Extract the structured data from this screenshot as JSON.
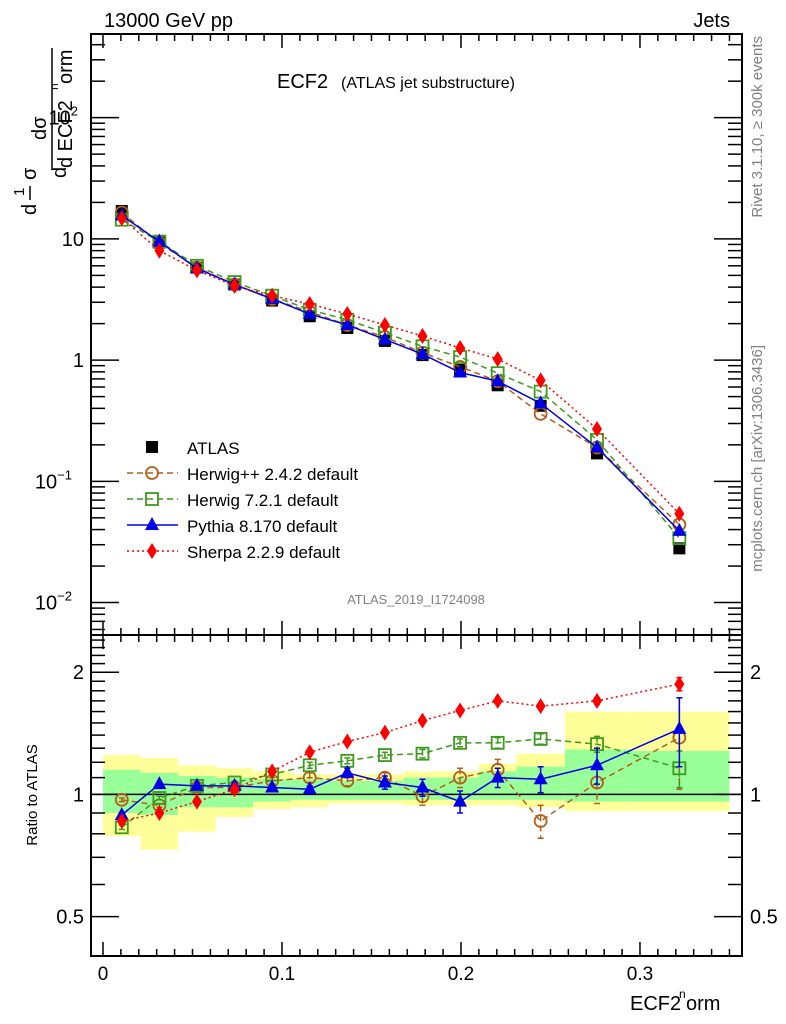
{
  "header": {
    "left": "13000 GeV pp",
    "right": "Jets"
  },
  "side_labels": {
    "rivet": "Rivet 3.1.10, ≥ 300k events",
    "mcplots": "mcplots.cern.ch [arXiv:1306.3436]"
  },
  "chart_data": [
    {
      "type": "line",
      "panel": "main",
      "title": "ECF2",
      "subtitle": "(ATLAS jet substructure)",
      "watermark": "ATLAS_2019_I1724098",
      "xlabel": "ECF2^norm",
      "ylabel": "1/σ dσ/d ECF2^norm",
      "yscale": "log",
      "xlim": [
        -0.0067,
        0.357
      ],
      "ylim": [
        0.0054,
        490
      ],
      "ytick_labels": [
        "10^{-2}",
        "10^{-1}",
        "1",
        "10",
        "10^{2}"
      ],
      "ytick_values": [
        0.01,
        0.1,
        1,
        10,
        100
      ],
      "legend_position": "lower-left",
      "x": [
        0.0105,
        0.0315,
        0.0525,
        0.0735,
        0.0945,
        0.1155,
        0.1365,
        0.1575,
        0.1785,
        0.1995,
        0.2205,
        0.2445,
        0.276,
        0.322
      ],
      "series": [
        {
          "name": "ATLAS",
          "color": "#000000",
          "marker": "square",
          "line": "none",
          "values": [
            17.0,
            9.3,
            5.8,
            4.2,
            3.1,
            2.3,
            1.84,
            1.44,
            1.1,
            0.83,
            0.62,
            0.42,
            0.17,
            0.028
          ]
        },
        {
          "name": "Herwig++ 2.4.2 default",
          "color": "#b35f1a",
          "marker": "open-circle",
          "line": "dashed",
          "values": [
            16.5,
            9.2,
            5.8,
            4.2,
            3.2,
            2.5,
            1.95,
            1.55,
            1.15,
            0.88,
            0.67,
            0.36,
            0.19,
            0.044
          ]
        },
        {
          "name": "Herwig 7.2.1 default",
          "color": "#3c9a1c",
          "marker": "open-square",
          "line": "dashed",
          "values": [
            14.4,
            9.5,
            6.0,
            4.4,
            3.4,
            2.6,
            2.15,
            1.68,
            1.3,
            1.06,
            0.78,
            0.55,
            0.22,
            0.034
          ]
        },
        {
          "name": "Pythia 8.170 default",
          "color": "#0000e6",
          "marker": "triangle",
          "line": "solid",
          "values": [
            15.6,
            9.5,
            5.7,
            4.2,
            3.2,
            2.4,
            1.95,
            1.48,
            1.12,
            0.79,
            0.67,
            0.44,
            0.19,
            0.039
          ]
        },
        {
          "name": "Sherpa 2.2.9 default",
          "color": "#ff0000",
          "marker": "diamond",
          "line": "dotted",
          "values": [
            14.8,
            8.0,
            5.5,
            4.1,
            3.4,
            2.9,
            2.4,
            1.95,
            1.58,
            1.26,
            1.02,
            0.68,
            0.27,
            0.054
          ]
        }
      ]
    },
    {
      "type": "line",
      "panel": "ratio",
      "ylabel": "Ratio to ATLAS",
      "xlabel": "ECF2^norm",
      "yscale": "log",
      "xlim": [
        -0.0067,
        0.357
      ],
      "ylim": [
        0.4,
        2.47
      ],
      "ytick_labels": [
        "0.5",
        "1",
        "2"
      ],
      "ytick_values": [
        0.5,
        1,
        2
      ],
      "xtick_labels": [
        "0",
        "0.1",
        "0.2",
        "0.3"
      ],
      "xtick_values": [
        0,
        0.1,
        0.2,
        0.3
      ],
      "bin_edges": [
        0,
        0.021,
        0.042,
        0.063,
        0.084,
        0.105,
        0.126,
        0.147,
        0.168,
        0.189,
        0.21,
        0.231,
        0.258,
        0.294,
        0.35
      ],
      "band_inner": {
        "color": "#99ff99",
        "low": [
          0.9,
          0.89,
          0.93,
          0.93,
          0.96,
          0.97,
          0.97,
          0.97,
          0.97,
          0.97,
          0.97,
          0.97,
          0.96,
          0.96
        ],
        "high": [
          1.15,
          1.13,
          1.11,
          1.1,
          1.09,
          1.09,
          1.08,
          1.08,
          1.1,
          1.1,
          1.14,
          1.17,
          1.29,
          1.28
        ]
      },
      "band_outer": {
        "color": "#ffff99",
        "low": [
          0.79,
          0.73,
          0.81,
          0.88,
          0.92,
          0.93,
          0.95,
          0.95,
          0.94,
          0.94,
          0.94,
          0.93,
          0.91,
          0.91
        ],
        "high": [
          1.25,
          1.23,
          1.18,
          1.16,
          1.14,
          1.12,
          1.12,
          1.12,
          1.14,
          1.14,
          1.19,
          1.26,
          1.6,
          1.6
        ]
      },
      "x": [
        0.0105,
        0.0315,
        0.0525,
        0.0735,
        0.0945,
        0.1155,
        0.1365,
        0.1575,
        0.1785,
        0.1995,
        0.2205,
        0.2445,
        0.276,
        0.322
      ],
      "series": [
        {
          "name": "Herwig++ 2.4.2 default",
          "color": "#b35f1a",
          "marker": "open-circle",
          "line": "dashed",
          "values": [
            0.97,
            0.94,
            1.04,
            1.04,
            1.08,
            1.1,
            1.08,
            1.1,
            0.99,
            1.1,
            1.15,
            0.86,
            1.07,
            1.38
          ],
          "err": [
            0.01,
            0.01,
            0.01,
            0.02,
            0.02,
            0.03,
            0.03,
            0.03,
            0.05,
            0.06,
            0.07,
            0.08,
            0.12,
            0.35
          ]
        },
        {
          "name": "Herwig 7.2.1 default",
          "color": "#3c9a1c",
          "marker": "open-square",
          "line": "dashed",
          "values": [
            0.83,
            0.98,
            1.05,
            1.07,
            1.12,
            1.18,
            1.21,
            1.25,
            1.26,
            1.34,
            1.34,
            1.37,
            1.33,
            1.16
          ],
          "err": [
            0.01,
            0.01,
            0.01,
            0.01,
            0.02,
            0.02,
            0.02,
            0.02,
            0.03,
            0.03,
            0.04,
            0.04,
            0.06,
            0.12
          ]
        },
        {
          "name": "Pythia 8.170 default",
          "color": "#0000e6",
          "marker": "triangle",
          "line": "solid",
          "values": [
            0.89,
            1.06,
            1.05,
            1.05,
            1.04,
            1.03,
            1.13,
            1.07,
            1.04,
            0.96,
            1.1,
            1.09,
            1.18,
            1.45
          ],
          "err": [
            0.01,
            0.01,
            0.01,
            0.02,
            0.02,
            0.02,
            0.03,
            0.04,
            0.05,
            0.06,
            0.06,
            0.08,
            0.12,
            0.28
          ]
        },
        {
          "name": "Sherpa 2.2.9 default",
          "color": "#ff0000",
          "marker": "diamond",
          "line": "dotted",
          "values": [
            0.86,
            0.9,
            0.96,
            1.03,
            1.14,
            1.27,
            1.35,
            1.42,
            1.52,
            1.61,
            1.7,
            1.65,
            1.7,
            1.87
          ],
          "err": [
            0.01,
            0.01,
            0.01,
            0.01,
            0.01,
            0.01,
            0.01,
            0.02,
            0.02,
            0.02,
            0.02,
            0.02,
            0.03,
            0.07
          ]
        }
      ]
    }
  ]
}
